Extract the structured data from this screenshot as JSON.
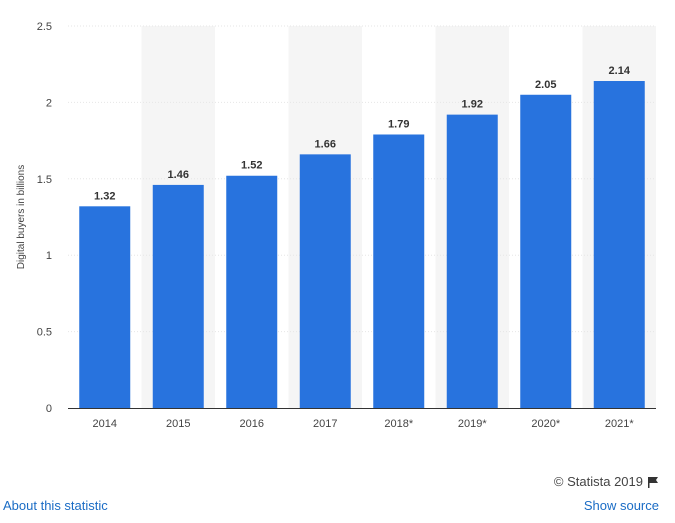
{
  "chart_data": {
    "type": "bar",
    "categories": [
      "2014",
      "2015",
      "2016",
      "2017",
      "2018*",
      "2019*",
      "2020*",
      "2021*"
    ],
    "values": [
      1.32,
      1.46,
      1.52,
      1.66,
      1.79,
      1.92,
      2.05,
      2.14
    ],
    "data_labels": [
      "1.32",
      "1.46",
      "1.52",
      "1.66",
      "1.79",
      "1.92",
      "2.05",
      "2.14"
    ],
    "ylabel": "Digital buyers in billions",
    "ylim": [
      0,
      2.5
    ],
    "yticks": [
      0,
      0.5,
      1,
      1.5,
      2,
      2.5
    ],
    "ytick_labels": [
      "0",
      "0.5",
      "1",
      "1.5",
      "2",
      "2.5"
    ],
    "grid": true,
    "bar_color": "#2873de",
    "band_color": "#f5f5f5"
  },
  "footer": {
    "copyright": "© Statista 2019",
    "flag_icon": "flag-icon",
    "about_link": "About this statistic",
    "source_link": "Show source"
  }
}
